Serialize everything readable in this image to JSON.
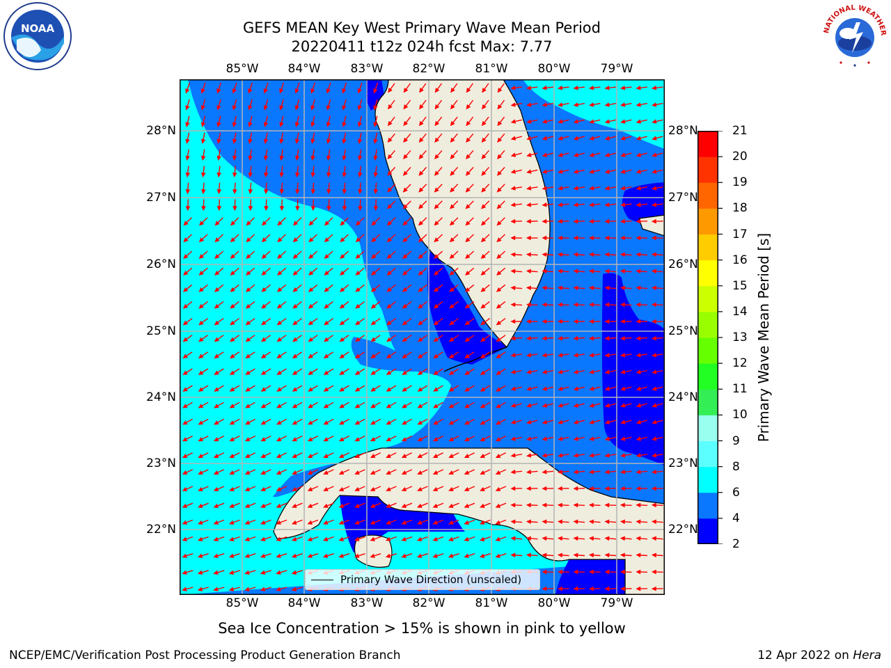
{
  "title": {
    "line1": "GEFS MEAN Key West Primary Wave Mean Period",
    "line2": "20220411 t12z 024h fcst   Max: 7.77"
  },
  "axes": {
    "lon_ticks": [
      "85°W",
      "84°W",
      "83°W",
      "82°W",
      "81°W",
      "80°W",
      "79°W"
    ],
    "lat_ticks": [
      "28°N",
      "27°N",
      "26°N",
      "25°N",
      "24°N",
      "23°N",
      "22°N"
    ]
  },
  "colorbar": {
    "label": "Primary Wave Mean Period [s]",
    "ticks": [
      "21",
      "20",
      "19",
      "18",
      "17",
      "16",
      "15",
      "14",
      "13",
      "12",
      "11",
      "10",
      "9",
      "8",
      "6",
      "4",
      "2"
    ],
    "colors": [
      "#0000ff",
      "#0a77ff",
      "#00ffff",
      "#5cffff",
      "#99ffee",
      "#33ee55",
      "#22ff22",
      "#66ff00",
      "#99ff00",
      "#ccff00",
      "#ffff00",
      "#ffcc00",
      "#ff9900",
      "#ff6600",
      "#ff3300",
      "#ff0000"
    ]
  },
  "legend": {
    "label": "Primary Wave Direction (unscaled)"
  },
  "note": "Sea Ice Concentration > 15% is shown in pink to yellow",
  "footer": {
    "left": "NCEP/EMC/Verification Post Processing Product Generation Branch",
    "date": "12 Apr 2022 on",
    "host": "Hera"
  },
  "logos": {
    "left_text": "NOAA",
    "right_text": "NATIONAL WEATHER SERVICE"
  },
  "map_colors": {
    "land": "#efedde",
    "ocean_4_6": "#0a77ff",
    "ocean_6_8": "#00ffff",
    "ocean_2_4": "#0000ff",
    "arrow": "#ff0000"
  }
}
